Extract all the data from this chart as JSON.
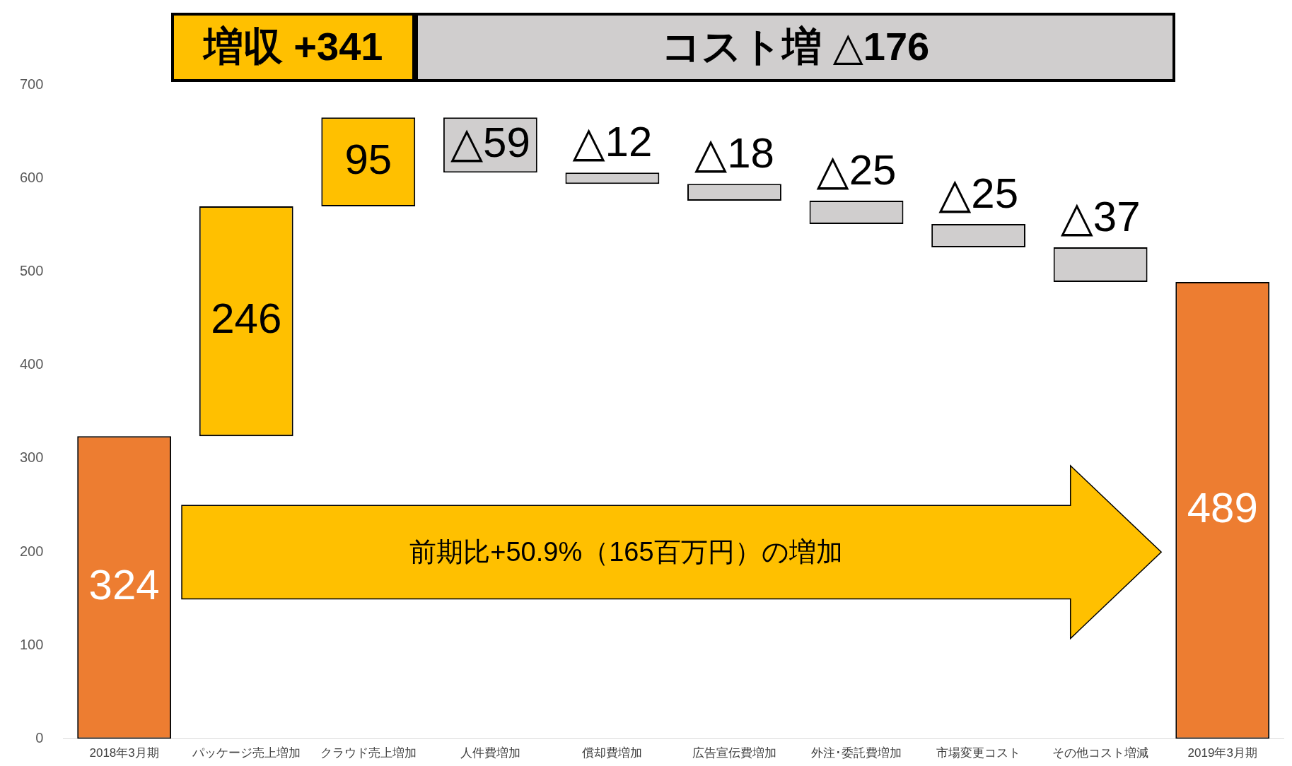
{
  "chart_data": {
    "type": "bar",
    "categories": [
      "2018年3月期",
      "パッケージ売上増加",
      "クラウド売上増加",
      "人件費増加",
      "償却費増加",
      "広告宣伝費増加",
      "外注･委託費増加",
      "市場変更コスト",
      "その他コスト増減",
      "2019年3月期"
    ],
    "values": [
      324,
      246,
      95,
      -59,
      -12,
      -18,
      -25,
      -25,
      -37,
      489
    ],
    "base": [
      0,
      324,
      570,
      665,
      606,
      594,
      576,
      551,
      526,
      0
    ],
    "colors": [
      "#ed7d31",
      "#ffc000",
      "#ffc000",
      "#d0cece",
      "#d0cece",
      "#d0cece",
      "#d0cece",
      "#d0cece",
      "#d0cece",
      "#ed7d31"
    ],
    "value_labels": [
      "324",
      "246",
      "95",
      "△59",
      "△12",
      "△18",
      "△25",
      "△25",
      "△37",
      "489"
    ],
    "ylim": [
      0,
      700
    ],
    "yticks": [
      0,
      100,
      200,
      300,
      400,
      500,
      600,
      700
    ],
    "grid": false,
    "legend": false,
    "annotations": [
      "増収 +341",
      "コスト増 △176",
      "前期比+50.9%（165百万円）の増加"
    ]
  }
}
